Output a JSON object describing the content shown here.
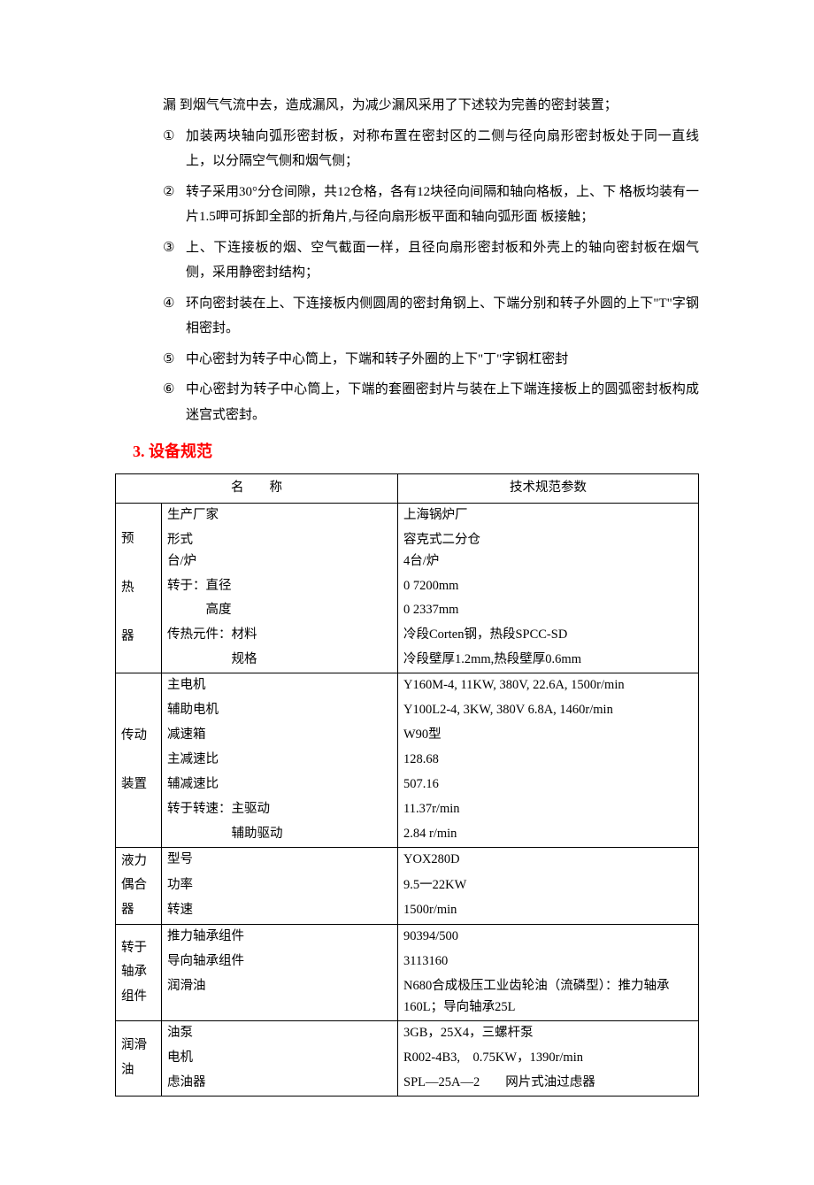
{
  "intro": "漏 到烟气气流中去，造成漏风，为减少漏风采用了下述较为完善的密封装置；",
  "list": [
    {
      "marker": "①",
      "text": "加装两块轴向弧形密封板，对称布置在密封区的二侧与径向扇形密封板处于同一直线上，以分隔空气侧和烟气侧；"
    },
    {
      "marker": "②",
      "text": "转子采用30°分仓间隙，共12仓格，各有12块径向间隔和轴向格板，上、下 格板均装有一片1.5呷可拆卸全部的折角片,与径向扇形板平面和轴向弧形面 板接触；"
    },
    {
      "marker": "③",
      "text": "上、下连接板的烟、空气截面一样，且径向扇形密封板和外壳上的轴向密封板在烟气侧，采用静密封结构；"
    },
    {
      "marker": "④",
      "text": "环向密封装在上、下连接板内侧圆周的密封角钢上、下端分别和转子外圆的上下\"T\"字钢相密封。"
    },
    {
      "marker": "⑤",
      "text": "中心密封为转子中心筒上，下端和转子外圈的上下\"丁\"字钢杠密封"
    },
    {
      "marker": "⑥",
      "text": "中心密封为转子中心筒上，下端的套圈密封片与装在上下端连接板上的圆弧密封板构成迷宫式密封。"
    }
  ],
  "heading": "3. 设备规范",
  "table": {
    "header_left": "名　　称",
    "header_right": "技术规范参数",
    "groups": [
      {
        "cat": "预\n\n热\n\n器",
        "rows": [
          {
            "label": "生产厂家",
            "val": "上海锅炉厂"
          },
          {
            "label": "形式\n台/炉",
            "val": "容克式二分仓\n4台/炉"
          },
          {
            "label": "转于：直径",
            "val": "0 7200mm"
          },
          {
            "label": "　　　高度",
            "val": "0 2337mm"
          },
          {
            "label": "传热元件：材料",
            "val": "冷段Corten钢，热段SPCC-SD"
          },
          {
            "label": "　　　　　规格",
            "val": "冷段壁厚1.2mm,热段壁厚0.6mm"
          }
        ]
      },
      {
        "cat": "传动\n\n装置",
        "rows": [
          {
            "label": "主电机",
            "val": "Y160M-4, 11KW, 380V, 22.6A, 1500r/min"
          },
          {
            "label": "辅助电机",
            "val": "Y100L2-4, 3KW, 380V 6.8A, 1460r/min"
          },
          {
            "label": "减速箱",
            "val": "W90型"
          },
          {
            "label": "主减速比",
            "val": "128.68"
          },
          {
            "label": "辅减速比",
            "val": "507.16"
          },
          {
            "label": "转于转速：主驱动",
            "val": "11.37r/min"
          },
          {
            "label": "　　　　　辅助驱动",
            "val": "2.84 r/min"
          }
        ]
      },
      {
        "cat": "液力\n偶合\n器",
        "rows": [
          {
            "label": "型号",
            "val": "YOX280D"
          },
          {
            "label": "功率",
            "val": "9.5一22KW"
          },
          {
            "label": "转速",
            "val": "1500r/min"
          }
        ]
      },
      {
        "cat": "转于\n轴承\n组件",
        "rows": [
          {
            "label": "推力轴承组件",
            "val": "90394/500"
          },
          {
            "label": "导向轴承组件",
            "val": "3113160"
          },
          {
            "label": "润滑油",
            "val": "N680合成极压工业齿轮油（流磷型）：推力轴承160L；导向轴承25L"
          }
        ]
      },
      {
        "cat": "润滑\n油",
        "rows": [
          {
            "label": "油泵",
            "val": "3GB，25X4，三螺杆泵"
          },
          {
            "label": "电机",
            "val": "R002-4B3,　0.75KW，1390r/min"
          },
          {
            "label": "虑油器",
            "val": "SPL—25A—2　　网片式油过虑器"
          }
        ]
      }
    ]
  }
}
